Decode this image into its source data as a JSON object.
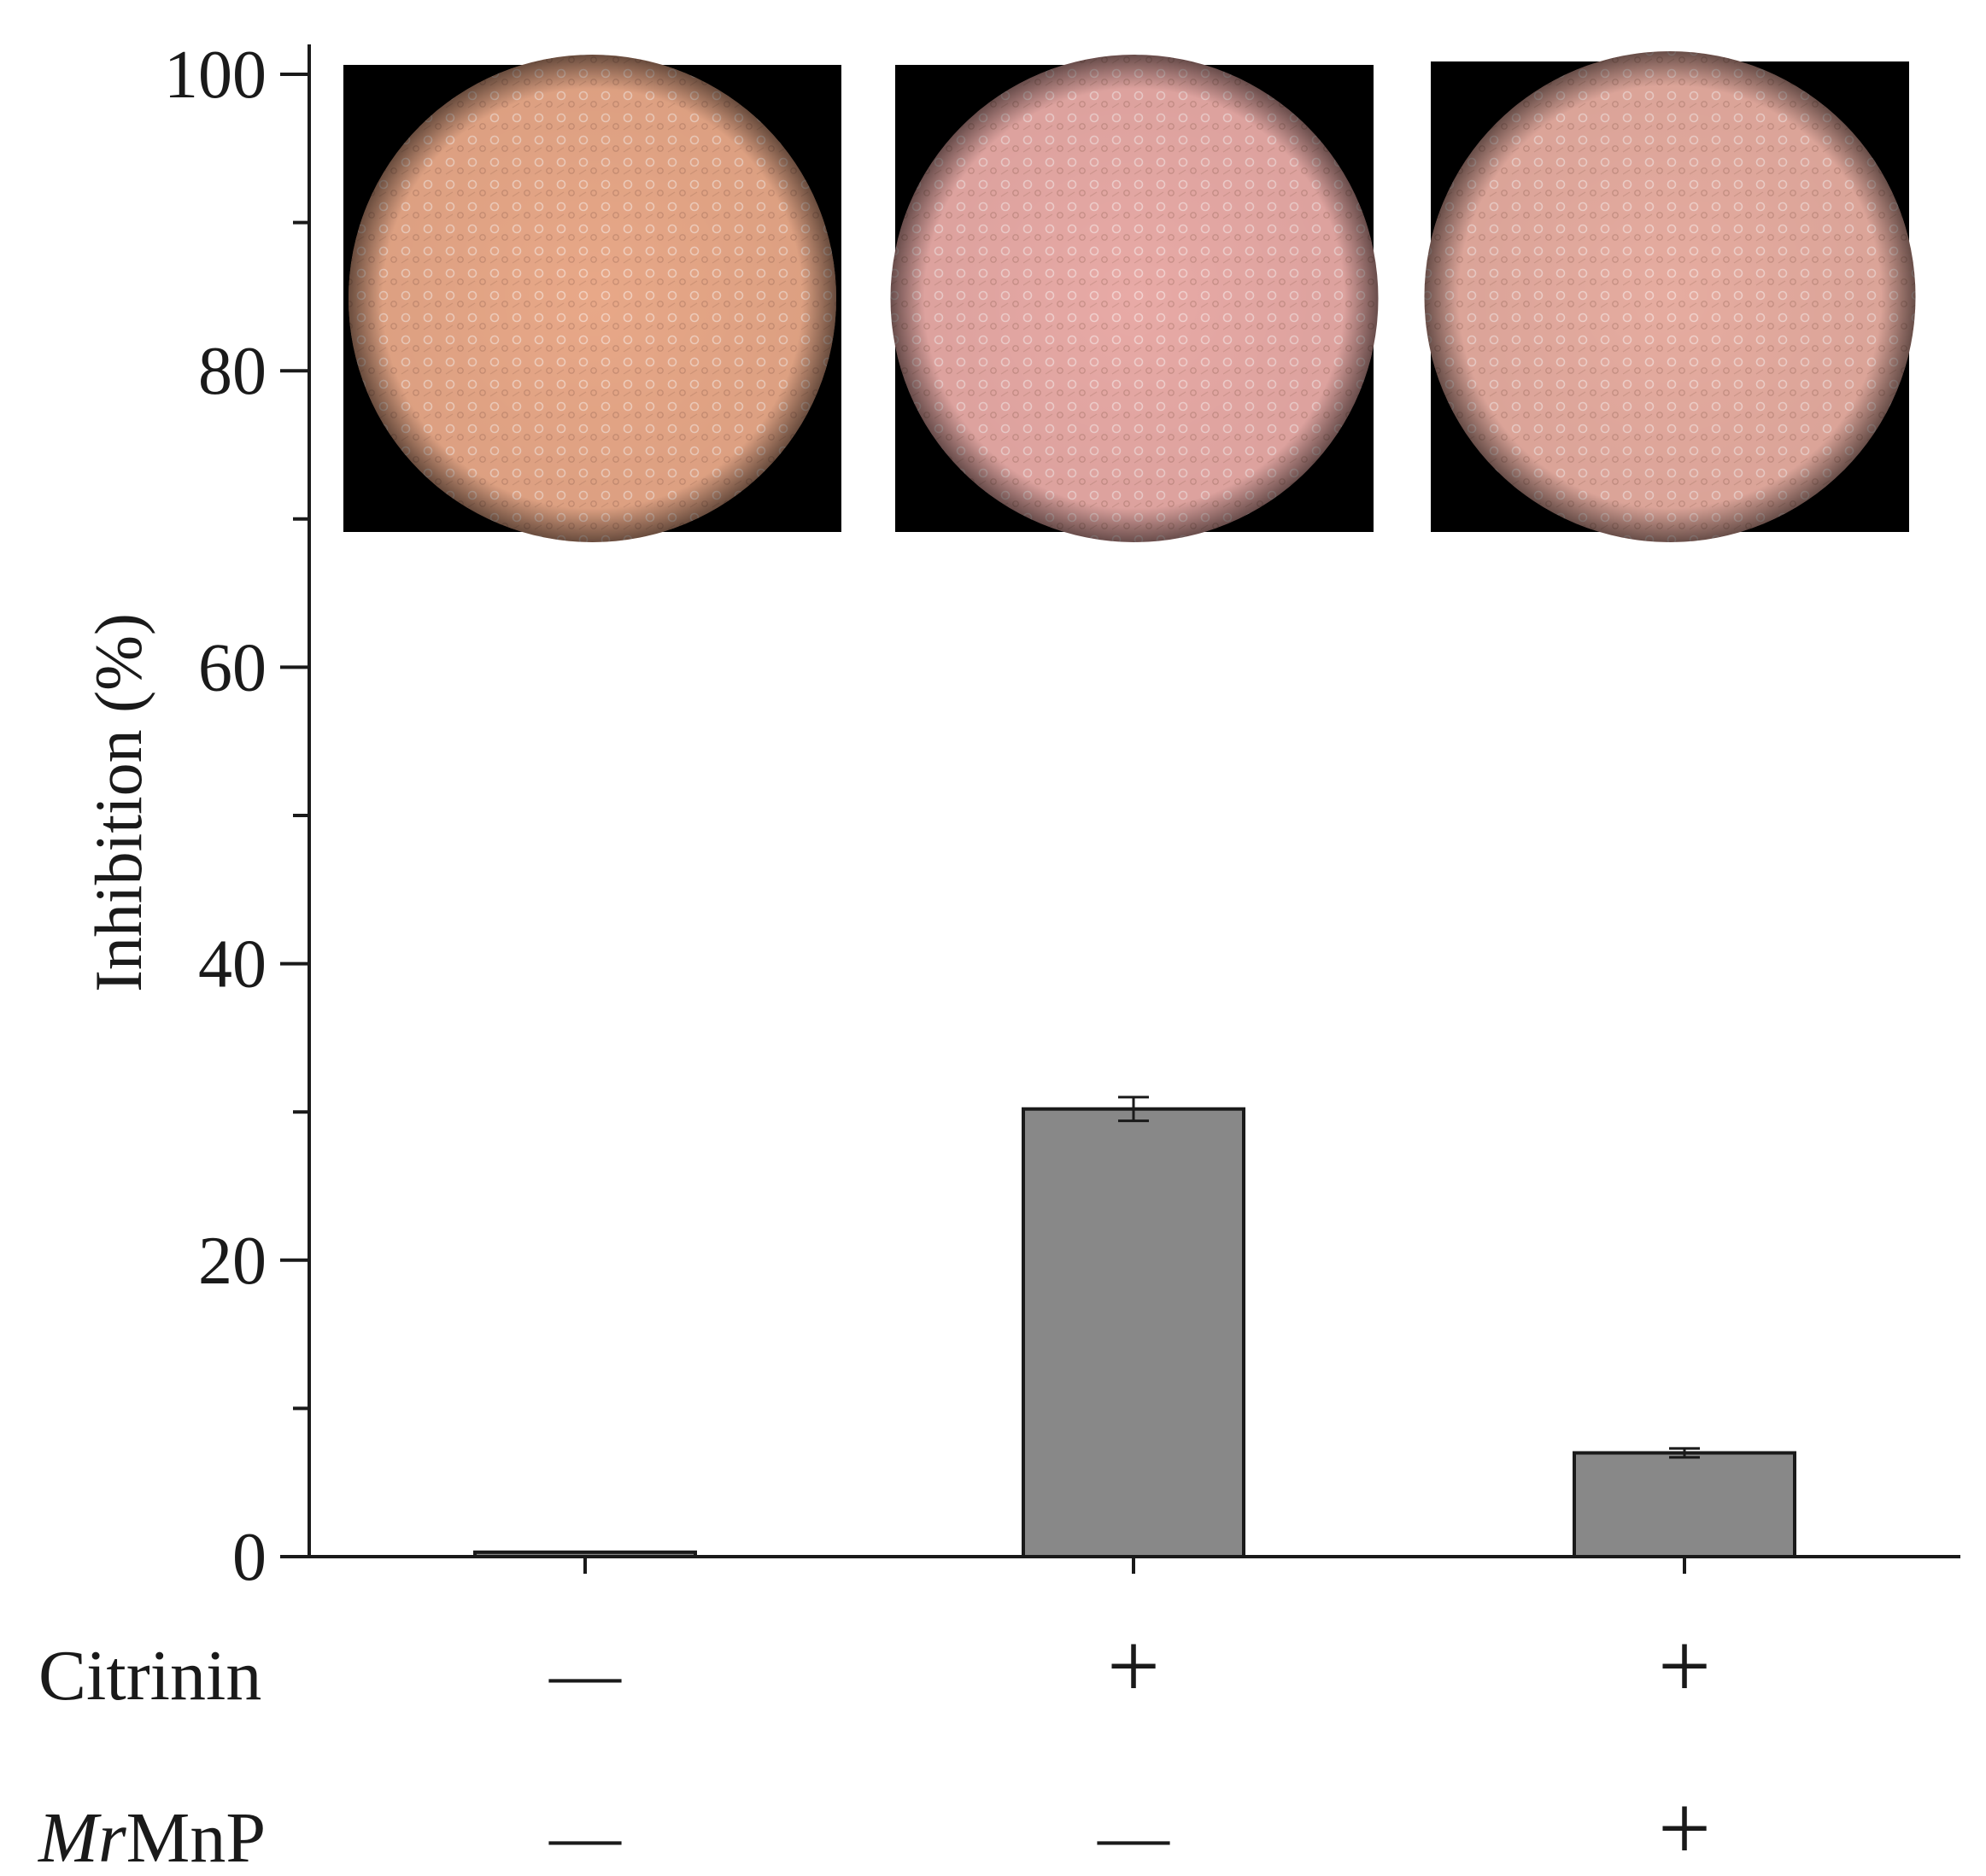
{
  "chart_data": {
    "type": "bar",
    "ylabel": "Inhibition (%)",
    "ylim": [
      0,
      100
    ],
    "yticks": [
      0,
      20,
      40,
      60,
      80,
      100
    ],
    "categories": [
      "1",
      "2",
      "3"
    ],
    "values": [
      0.3,
      30.2,
      7.0
    ],
    "errors": [
      0.1,
      0.8,
      0.3
    ],
    "bar_color": "#888888",
    "conditions": [
      {
        "label": "Citrinin",
        "italic_prefix": "",
        "signs": [
          "—",
          "+",
          "+"
        ]
      },
      {
        "label": "MnP",
        "italic_prefix": "Mr",
        "signs": [
          "—",
          "—",
          "+"
        ]
      }
    ],
    "insets": [
      {
        "name": "micrograph-control",
        "tint": "#e8a888"
      },
      {
        "name": "micrograph-citrinin",
        "tint": "#e8aaa6"
      },
      {
        "name": "micrograph-citrinin-mrmnp",
        "tint": "#e6aca0"
      }
    ]
  }
}
